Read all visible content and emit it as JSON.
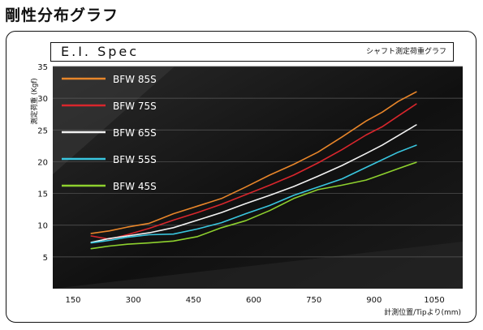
{
  "page_title": "剛性分布グラフ",
  "header": {
    "title": "E.I. Spec",
    "subtitle": "シャフト測定荷重グラフ"
  },
  "colors": {
    "plot_bg": "#0d0d0d",
    "grid": "#5a5a5a",
    "text_dark": "#111111"
  },
  "chart_data": {
    "type": "line",
    "title": "E.I. Spec",
    "xlabel": "計測位置/Tipより(mm)",
    "ylabel": "測定荷重 (Kgf)",
    "xlim": [
      150,
      1050
    ],
    "ylim": [
      0,
      35
    ],
    "x_ticks": [
      150,
      300,
      450,
      600,
      750,
      900,
      1050
    ],
    "y_ticks": [
      5,
      10,
      15,
      20,
      25,
      30,
      35
    ],
    "grid": true,
    "legend_position": "top-left",
    "series": [
      {
        "name": "BFW 85S",
        "color": "#e8862a",
        "x": [
          195,
          240,
          285,
          340,
          400,
          460,
          520,
          580,
          640,
          700,
          760,
          820,
          880,
          920,
          960,
          1005
        ],
        "y": [
          8.7,
          9.1,
          9.7,
          10.3,
          11.8,
          13.0,
          14.2,
          16.0,
          17.9,
          19.6,
          21.5,
          23.9,
          26.4,
          27.8,
          29.5,
          31.0
        ]
      },
      {
        "name": "BFW 75S",
        "color": "#d9262c",
        "x": [
          195,
          240,
          285,
          340,
          400,
          460,
          520,
          580,
          640,
          700,
          760,
          820,
          880,
          920,
          960,
          1005
        ],
        "y": [
          8.3,
          7.8,
          8.5,
          9.5,
          10.8,
          12.0,
          13.3,
          14.8,
          16.3,
          17.9,
          19.8,
          21.9,
          24.2,
          25.5,
          27.2,
          29.1
        ]
      },
      {
        "name": "BFW 65S",
        "color": "#f2f2f2",
        "x": [
          195,
          240,
          285,
          340,
          400,
          460,
          520,
          580,
          640,
          700,
          760,
          820,
          880,
          920,
          960,
          1005
        ],
        "y": [
          7.3,
          7.9,
          8.3,
          8.8,
          9.6,
          10.8,
          12.0,
          13.4,
          14.7,
          16.1,
          17.7,
          19.4,
          21.3,
          22.6,
          24.1,
          25.8
        ]
      },
      {
        "name": "BFW 55S",
        "color": "#39c6df",
        "x": [
          195,
          240,
          285,
          340,
          400,
          460,
          520,
          580,
          640,
          700,
          760,
          820,
          880,
          920,
          960,
          1005
        ],
        "y": [
          7.2,
          7.6,
          8.1,
          8.5,
          8.6,
          9.4,
          10.4,
          11.8,
          13.1,
          14.7,
          16.0,
          17.3,
          19.1,
          20.3,
          21.5,
          22.6
        ]
      },
      {
        "name": "BFW 45S",
        "color": "#8ed12e",
        "x": [
          195,
          240,
          285,
          340,
          400,
          460,
          520,
          580,
          640,
          700,
          760,
          820,
          880,
          920,
          960,
          1005
        ],
        "y": [
          6.3,
          6.7,
          7.0,
          7.2,
          7.5,
          8.2,
          9.6,
          10.7,
          12.3,
          14.2,
          15.6,
          16.3,
          17.1,
          18.0,
          18.9,
          19.9
        ]
      }
    ]
  }
}
